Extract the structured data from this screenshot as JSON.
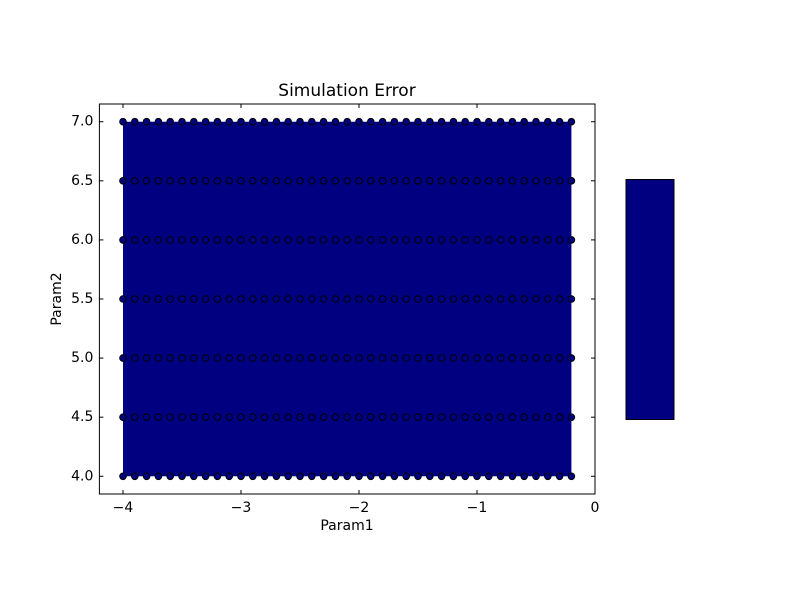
{
  "chart_data": {
    "type": "contour-scatter",
    "title": "Simulation Error",
    "x_label": "Param1",
    "y_label": "Param2",
    "xlim": [
      -4.2,
      0
    ],
    "ylim": [
      3.85,
      7.15
    ],
    "xticks": [
      {
        "value": -4,
        "label": "−4"
      },
      {
        "value": -3,
        "label": "−3"
      },
      {
        "value": -2,
        "label": "−2"
      },
      {
        "value": -1,
        "label": "−1"
      },
      0
    ],
    "yticks": [
      {
        "value": 4,
        "label": "4.0"
      },
      {
        "value": 4.5,
        "label": "4.5"
      },
      {
        "value": 5,
        "label": "5.0"
      },
      {
        "value": 5.5,
        "label": "5.5"
      },
      {
        "value": 6,
        "label": "6.0"
      },
      {
        "value": 6.5,
        "label": "6.5"
      },
      {
        "value": 7,
        "label": "7.0"
      }
    ],
    "grid_x": [
      -4.0,
      -3.9,
      -3.8,
      -3.7,
      -3.6,
      -3.5,
      -3.4,
      -3.3,
      -3.2,
      -3.1,
      -3.0,
      -2.9,
      -2.8,
      -2.7,
      -2.6,
      -2.5,
      -2.4,
      -2.3,
      -2.2,
      -2.1,
      -2.0,
      -1.9,
      -1.8,
      -1.7,
      -1.6,
      -1.5,
      -1.4,
      -1.3,
      -1.2,
      -1.1,
      -1.0,
      -0.9,
      -0.8,
      -0.7,
      -0.6,
      -0.5,
      -0.4,
      -0.3,
      -0.2
    ],
    "grid_y": [
      4.0,
      4.5,
      5.0,
      5.5,
      6.0,
      6.5,
      7.0
    ],
    "color": "#000080",
    "marker_edge": "#000000"
  }
}
